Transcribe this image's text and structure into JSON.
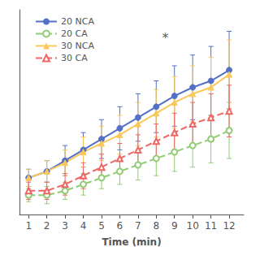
{
  "chart_data": {
    "type": "line",
    "x": [
      1,
      2,
      3,
      4,
      5,
      6,
      7,
      8,
      9,
      10,
      11,
      12
    ],
    "xlabel": "Time (min)",
    "xlim": [
      0.5,
      12.8
    ],
    "xticks": [
      1,
      2,
      3,
      4,
      5,
      6,
      7,
      8,
      9,
      10,
      11,
      12
    ],
    "ylim": [
      -0.15,
      0.8
    ],
    "yticks": [],
    "tick_labels": "x",
    "grid": false,
    "legend": "upper left",
    "series": [
      {
        "name": "20 NCA",
        "values": [
          0.02,
          0.05,
          0.1,
          0.15,
          0.2,
          0.25,
          0.3,
          0.35,
          0.4,
          0.44,
          0.47,
          0.52
        ],
        "errors": [
          0.04,
          0.05,
          0.07,
          0.08,
          0.09,
          0.1,
          0.11,
          0.12,
          0.14,
          0.15,
          0.16,
          0.18
        ],
        "marker": "circle",
        "line_style": "solid"
      },
      {
        "name": "20 CA",
        "values": [
          -0.06,
          -0.06,
          -0.04,
          -0.01,
          0.02,
          0.05,
          0.08,
          0.11,
          0.14,
          0.17,
          0.2,
          0.24
        ],
        "errors": [
          0.03,
          0.04,
          0.04,
          0.05,
          0.05,
          0.06,
          0.07,
          0.08,
          0.09,
          0.1,
          0.11,
          0.13
        ],
        "marker": "open_circle",
        "line_style": "dashed"
      },
      {
        "name": "30 NCA",
        "values": [
          0.02,
          0.05,
          0.09,
          0.14,
          0.18,
          0.22,
          0.27,
          0.32,
          0.37,
          0.41,
          0.44,
          0.5
        ],
        "errors": [
          0.04,
          0.05,
          0.06,
          0.07,
          0.08,
          0.09,
          0.1,
          0.11,
          0.12,
          0.13,
          0.14,
          0.16
        ],
        "marker": "triangle",
        "line_style": "solid"
      },
      {
        "name": "30 CA",
        "values": [
          -0.04,
          -0.04,
          -0.01,
          0.03,
          0.07,
          0.11,
          0.15,
          0.19,
          0.23,
          0.27,
          0.3,
          0.33
        ],
        "errors": [
          0.04,
          0.04,
          0.05,
          0.06,
          0.06,
          0.07,
          0.07,
          0.08,
          0.09,
          0.1,
          0.11,
          0.12
        ],
        "marker": "open_triangle",
        "line_style": "dashed"
      }
    ],
    "annotations": [
      {
        "text": "*",
        "x": 8.5,
        "y": 0.64
      }
    ]
  }
}
